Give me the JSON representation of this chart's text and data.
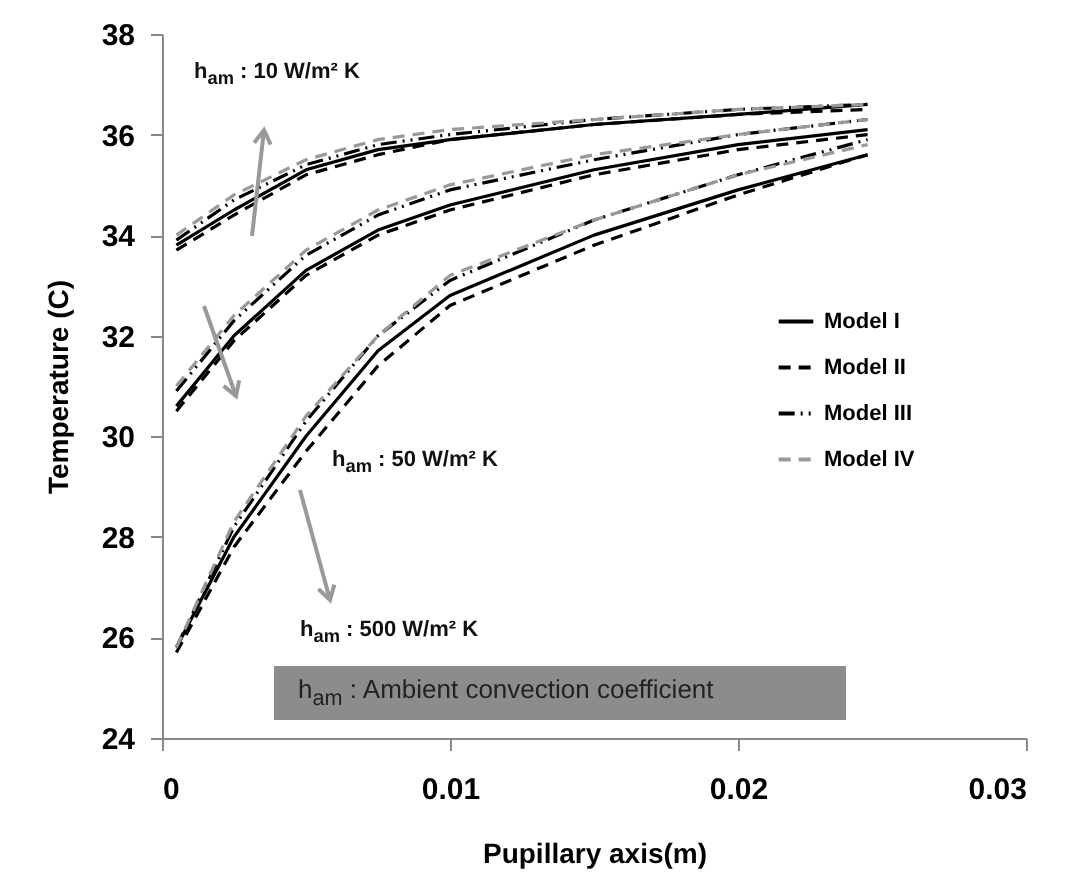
{
  "chart_data": {
    "type": "line",
    "xlabel": "Pupillary axis(m)",
    "ylabel": "Temperature (C)",
    "x": [
      0.0005,
      0.0025,
      0.005,
      0.0075,
      0.01,
      0.015,
      0.02,
      0.0245
    ],
    "xlim": [
      0,
      0.03
    ],
    "xticks": [
      0,
      0.01,
      0.02,
      0.03
    ],
    "ylim": [
      24,
      38
    ],
    "yticks": [
      24,
      26,
      28,
      30,
      32,
      34,
      36,
      38
    ],
    "grid": false,
    "legend": "right",
    "marker": "none",
    "series": [
      {
        "name": "Model I",
        "color": "#000000",
        "line_style": "solid",
        "values": [
          33.8,
          34.5,
          35.3,
          35.7,
          35.9,
          36.2,
          36.4,
          36.6
        ]
      },
      {
        "name": "Model II",
        "color": "#000000",
        "line_style": "dashed",
        "values": [
          33.7,
          34.4,
          35.2,
          35.6,
          35.9,
          36.2,
          36.4,
          36.5
        ]
      },
      {
        "name": "Model III",
        "color": "#000000",
        "line_style": "dotted",
        "values": [
          33.9,
          34.7,
          35.4,
          35.8,
          36.0,
          36.3,
          36.5,
          36.6
        ]
      },
      {
        "name": "Model IV",
        "color": "#999999",
        "line_style": "dashed",
        "values": [
          34.0,
          34.8,
          35.5,
          35.9,
          36.1,
          36.3,
          36.5,
          36.6
        ]
      },
      {
        "color": "#000000",
        "line_style": "solid",
        "values": [
          30.6,
          32.0,
          33.3,
          34.1,
          34.6,
          35.3,
          35.8,
          36.1
        ]
      },
      {
        "color": "#000000",
        "line_style": "dashed",
        "values": [
          30.5,
          31.9,
          33.2,
          34.0,
          34.5,
          35.2,
          35.7,
          36.0
        ]
      },
      {
        "color": "#000000",
        "line_style": "dotted",
        "values": [
          30.9,
          32.3,
          33.6,
          34.4,
          34.9,
          35.5,
          36.0,
          36.3
        ]
      },
      {
        "color": "#999999",
        "line_style": "dashed",
        "values": [
          31.0,
          32.4,
          33.7,
          34.5,
          35.0,
          35.6,
          36.0,
          36.3
        ]
      },
      {
        "color": "#000000",
        "line_style": "solid",
        "values": [
          25.8,
          28.0,
          30.0,
          31.7,
          32.8,
          34.0,
          34.9,
          35.6
        ]
      },
      {
        "color": "#000000",
        "line_style": "dashed",
        "values": [
          25.7,
          27.8,
          29.7,
          31.4,
          32.6,
          33.8,
          34.8,
          35.6
        ]
      },
      {
        "color": "#000000",
        "line_style": "dotted",
        "values": [
          25.8,
          28.2,
          30.3,
          32.0,
          33.1,
          34.3,
          35.2,
          35.9
        ]
      },
      {
        "color": "#999999",
        "line_style": "dashed",
        "values": [
          25.8,
          28.3,
          30.4,
          32.0,
          33.2,
          34.3,
          35.2,
          35.8
        ]
      }
    ],
    "annotations": [
      "h$_{am}$ : 10 W/m² K",
      "h$_{am}$ : 50 W/m² K",
      "h$_{am}$ : 500 W/m² K",
      "h$_{am}$ : Ambient convection coefficient"
    ]
  }
}
